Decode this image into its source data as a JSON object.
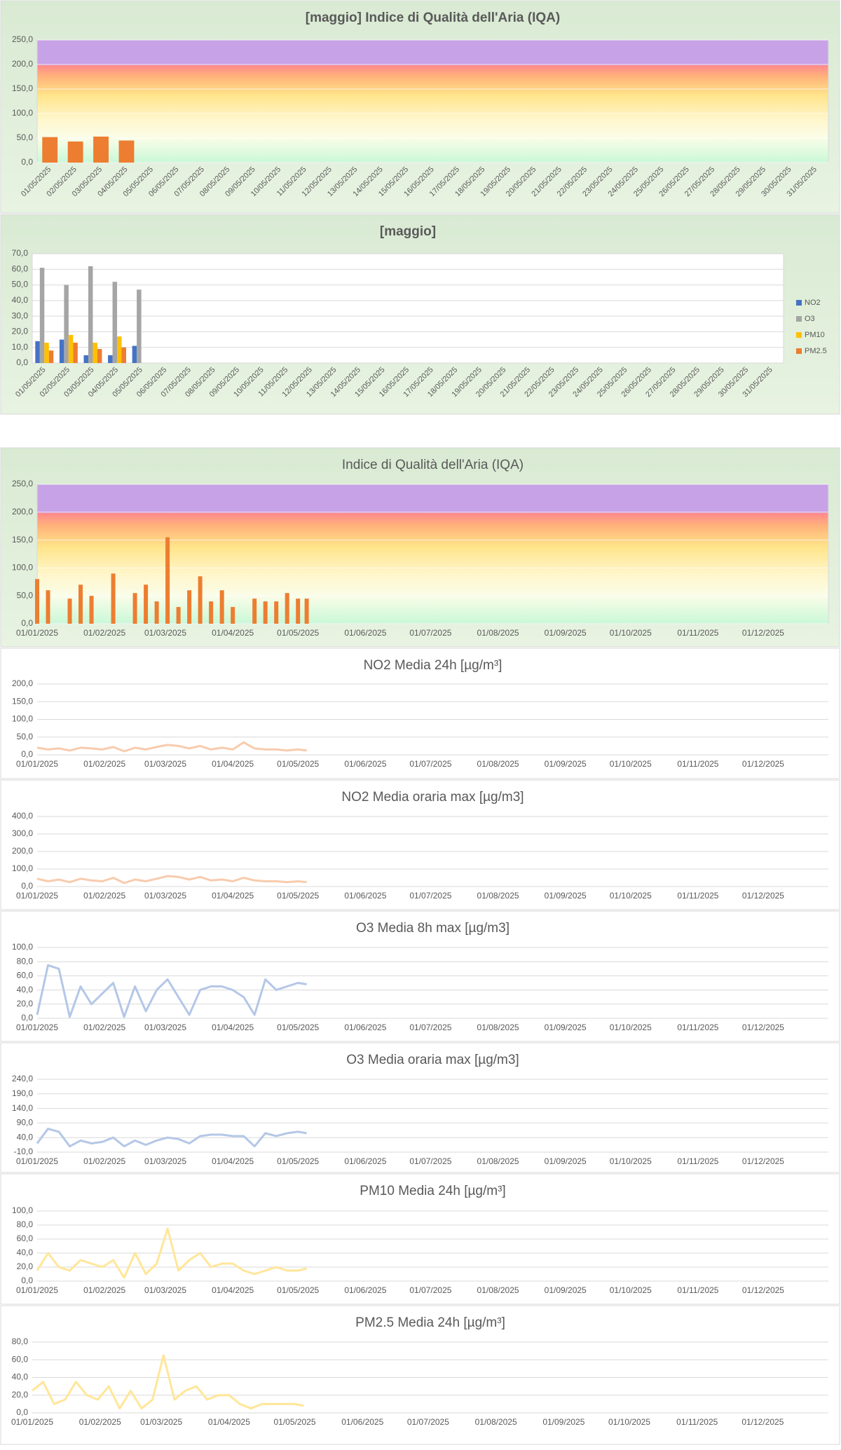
{
  "chart_data": [
    {
      "type": "bar",
      "title": "[maggio] Indice di Qualità dell'Aria (IQA)",
      "categories": [
        "01/05/2025",
        "02/05/2025",
        "03/05/2025",
        "04/05/2025",
        "05/05/2025",
        "06/05/2025",
        "07/05/2025",
        "08/05/2025",
        "09/05/2025",
        "10/05/2025",
        "11/05/2025",
        "12/05/2025",
        "13/05/2025",
        "14/05/2025",
        "15/05/2025",
        "16/05/2025",
        "17/05/2025",
        "18/05/2025",
        "19/05/2025",
        "20/05/2025",
        "21/05/2025",
        "22/05/2025",
        "23/05/2025",
        "24/05/2025",
        "25/05/2025",
        "26/05/2025",
        "27/05/2025",
        "28/05/2025",
        "29/05/2025",
        "30/05/2025",
        "31/05/2025"
      ],
      "values": [
        52,
        43,
        53,
        45,
        null,
        null,
        null,
        null,
        null,
        null,
        null,
        null,
        null,
        null,
        null,
        null,
        null,
        null,
        null,
        null,
        null,
        null,
        null,
        null,
        null,
        null,
        null,
        null,
        null,
        null,
        null
      ],
      "color": "#ed7d31",
      "ylim": [
        0,
        250
      ],
      "yticks": [
        {
          "value": 0,
          "label": "0,0"
        },
        {
          "value": 50,
          "label": "50,0"
        },
        {
          "value": 100,
          "label": "100,0"
        },
        {
          "value": 150,
          "label": "150,0"
        },
        {
          "value": 200,
          "label": "200,0"
        },
        {
          "value": 250,
          "label": "250,0"
        }
      ],
      "grid": true
    },
    {
      "type": "bar",
      "title": "[maggio]",
      "categories": [
        "01/05/2025",
        "02/05/2025",
        "03/05/2025",
        "04/05/2025",
        "05/05/2025",
        "06/05/2025",
        "07/05/2025",
        "08/05/2025",
        "09/05/2025",
        "10/05/2025",
        "11/05/2025",
        "12/05/2025",
        "13/05/2025",
        "14/05/2025",
        "15/05/2025",
        "16/05/2025",
        "17/05/2025",
        "18/05/2025",
        "19/05/2025",
        "20/05/2025",
        "21/05/2025",
        "22/05/2025",
        "23/05/2025",
        "24/05/2025",
        "25/05/2025",
        "26/05/2025",
        "27/05/2025",
        "28/05/2025",
        "29/05/2025",
        "30/05/2025",
        "31/05/2025"
      ],
      "series": [
        {
          "name": "NO2",
          "color": "#4472c4",
          "values": [
            14,
            15,
            5,
            5,
            11,
            null,
            null,
            null,
            null,
            null,
            null,
            null,
            null,
            null,
            null,
            null,
            null,
            null,
            null,
            null,
            null,
            null,
            null,
            null,
            null,
            null,
            null,
            null,
            null,
            null,
            null
          ]
        },
        {
          "name": "O3",
          "color": "#a5a5a5",
          "values": [
            61,
            50,
            62,
            52,
            47,
            null,
            null,
            null,
            null,
            null,
            null,
            null,
            null,
            null,
            null,
            null,
            null,
            null,
            null,
            null,
            null,
            null,
            null,
            null,
            null,
            null,
            null,
            null,
            null,
            null,
            null
          ]
        },
        {
          "name": "PM10",
          "color": "#ffc000",
          "values": [
            13,
            18,
            13,
            17,
            null,
            null,
            null,
            null,
            null,
            null,
            null,
            null,
            null,
            null,
            null,
            null,
            null,
            null,
            null,
            null,
            null,
            null,
            null,
            null,
            null,
            null,
            null,
            null,
            null,
            null,
            null
          ]
        },
        {
          "name": "PM2.5",
          "color": "#ed7d31",
          "values": [
            8,
            13,
            9,
            10,
            null,
            null,
            null,
            null,
            null,
            null,
            null,
            null,
            null,
            null,
            null,
            null,
            null,
            null,
            null,
            null,
            null,
            null,
            null,
            null,
            null,
            null,
            null,
            null,
            null,
            null,
            null
          ]
        }
      ],
      "ylim": [
        0,
        70
      ],
      "yticks": [
        {
          "value": 0,
          "label": "0,0"
        },
        {
          "value": 10,
          "label": "10,0"
        },
        {
          "value": 20,
          "label": "20,0"
        },
        {
          "value": 30,
          "label": "30,0"
        },
        {
          "value": 40,
          "label": "40,0"
        },
        {
          "value": 50,
          "label": "50,0"
        },
        {
          "value": 60,
          "label": "60,0"
        },
        {
          "value": 70,
          "label": "70,0"
        }
      ],
      "grid": true,
      "legend": "right"
    },
    {
      "type": "bar",
      "title": "Indice di Qualità dell'Aria (IQA)",
      "x": [
        "01/01/2025",
        "06/01/2025",
        "11/01/2025",
        "16/01/2025",
        "21/01/2025",
        "26/01/2025",
        "31/01/2025",
        "05/02/2025",
        "10/02/2025",
        "15/02/2025",
        "20/02/2025",
        "25/02/2025",
        "02/03/2025",
        "07/03/2025",
        "12/03/2025",
        "17/03/2025",
        "22/03/2025",
        "27/03/2025",
        "01/04/2025",
        "06/04/2025",
        "11/04/2025",
        "16/04/2025",
        "21/04/2025",
        "26/04/2025",
        "01/05/2025",
        "05/05/2025"
      ],
      "values": [
        80,
        60,
        null,
        45,
        70,
        50,
        null,
        90,
        null,
        55,
        70,
        40,
        155,
        30,
        60,
        85,
        40,
        60,
        30,
        null,
        45,
        40,
        40,
        55,
        45,
        45
      ],
      "color": "#ed7d31",
      "xlim": [
        "01/01/2025",
        "31/12/2025"
      ],
      "xticks": [
        "01/01/2025",
        "01/02/2025",
        "01/03/2025",
        "01/04/2025",
        "01/05/2025",
        "01/06/2025",
        "01/07/2025",
        "01/08/2025",
        "01/09/2025",
        "01/10/2025",
        "01/11/2025",
        "01/12/2025"
      ],
      "ylim": [
        0,
        250
      ],
      "yticks": [
        {
          "value": 0,
          "label": "0,0"
        },
        {
          "value": 50,
          "label": "50,0"
        },
        {
          "value": 100,
          "label": "100,0"
        },
        {
          "value": 150,
          "label": "150,0"
        },
        {
          "value": 200,
          "label": "200,0"
        },
        {
          "value": 250,
          "label": "250,0"
        }
      ],
      "grid": true
    },
    {
      "type": "line",
      "title": "NO2 Media 24h [µg/m³]",
      "x": [
        "01/01/2025",
        "06/01/2025",
        "11/01/2025",
        "16/01/2025",
        "21/01/2025",
        "26/01/2025",
        "31/01/2025",
        "05/02/2025",
        "10/02/2025",
        "15/02/2025",
        "20/02/2025",
        "25/02/2025",
        "02/03/2025",
        "07/03/2025",
        "12/03/2025",
        "17/03/2025",
        "22/03/2025",
        "27/03/2025",
        "01/04/2025",
        "06/04/2025",
        "11/04/2025",
        "16/04/2025",
        "21/04/2025",
        "26/04/2025",
        "01/05/2025",
        "05/05/2025"
      ],
      "values": [
        20,
        15,
        18,
        12,
        20,
        18,
        15,
        22,
        10,
        20,
        15,
        22,
        28,
        25,
        18,
        25,
        15,
        20,
        15,
        35,
        18,
        15,
        15,
        12,
        15,
        12
      ],
      "color": "#f8cbad",
      "xlim": [
        "01/01/2025",
        "31/12/2025"
      ],
      "xticks": [
        "01/01/2025",
        "01/02/2025",
        "01/03/2025",
        "01/04/2025",
        "01/05/2025",
        "01/06/2025",
        "01/07/2025",
        "01/08/2025",
        "01/09/2025",
        "01/10/2025",
        "01/11/2025",
        "01/12/2025"
      ],
      "ylim": [
        0,
        200
      ],
      "yticks": [
        {
          "value": 0,
          "label": "0,0"
        },
        {
          "value": 50,
          "label": "50,0"
        },
        {
          "value": 100,
          "label": "100,0"
        },
        {
          "value": 150,
          "label": "150,0"
        },
        {
          "value": 200,
          "label": "200,0"
        }
      ],
      "grid": true
    },
    {
      "type": "line",
      "title": "NO2 Media oraria max [µg/m3]",
      "x": [
        "01/01/2025",
        "06/01/2025",
        "11/01/2025",
        "16/01/2025",
        "21/01/2025",
        "26/01/2025",
        "31/01/2025",
        "05/02/2025",
        "10/02/2025",
        "15/02/2025",
        "20/02/2025",
        "25/02/2025",
        "02/03/2025",
        "07/03/2025",
        "12/03/2025",
        "17/03/2025",
        "22/03/2025",
        "27/03/2025",
        "01/04/2025",
        "06/04/2025",
        "11/04/2025",
        "16/04/2025",
        "21/04/2025",
        "26/04/2025",
        "01/05/2025",
        "05/05/2025"
      ],
      "values": [
        45,
        30,
        40,
        25,
        45,
        35,
        30,
        50,
        20,
        40,
        30,
        45,
        60,
        55,
        40,
        55,
        35,
        40,
        30,
        50,
        35,
        30,
        30,
        25,
        30,
        25
      ],
      "color": "#f8cbad",
      "xlim": [
        "01/01/2025",
        "31/12/2025"
      ],
      "xticks": [
        "01/01/2025",
        "01/02/2025",
        "01/03/2025",
        "01/04/2025",
        "01/05/2025",
        "01/06/2025",
        "01/07/2025",
        "01/08/2025",
        "01/09/2025",
        "01/10/2025",
        "01/11/2025",
        "01/12/2025"
      ],
      "ylim": [
        0,
        400
      ],
      "yticks": [
        {
          "value": 0,
          "label": "0,0"
        },
        {
          "value": 100,
          "label": "100,0"
        },
        {
          "value": 200,
          "label": "200,0"
        },
        {
          "value": 300,
          "label": "300,0"
        },
        {
          "value": 400,
          "label": "400,0"
        }
      ],
      "grid": true
    },
    {
      "type": "line",
      "title": "O3 Media 8h max [µg/m3]",
      "x": [
        "01/01/2025",
        "06/01/2025",
        "11/01/2025",
        "16/01/2025",
        "21/01/2025",
        "26/01/2025",
        "31/01/2025",
        "05/02/2025",
        "10/02/2025",
        "15/02/2025",
        "20/02/2025",
        "25/02/2025",
        "02/03/2025",
        "07/03/2025",
        "12/03/2025",
        "17/03/2025",
        "22/03/2025",
        "27/03/2025",
        "01/04/2025",
        "06/04/2025",
        "11/04/2025",
        "16/04/2025",
        "21/04/2025",
        "26/04/2025",
        "01/05/2025",
        "05/05/2025"
      ],
      "values": [
        5,
        75,
        70,
        2,
        45,
        20,
        35,
        50,
        2,
        45,
        10,
        40,
        55,
        30,
        5,
        40,
        45,
        45,
        40,
        30,
        5,
        55,
        40,
        45,
        50,
        48
      ],
      "color": "#b4c7e7",
      "xlim": [
        "01/01/2025",
        "31/12/2025"
      ],
      "xticks": [
        "01/01/2025",
        "01/02/2025",
        "01/03/2025",
        "01/04/2025",
        "01/05/2025",
        "01/06/2025",
        "01/07/2025",
        "01/08/2025",
        "01/09/2025",
        "01/10/2025",
        "01/11/2025",
        "01/12/2025"
      ],
      "ylim": [
        0,
        100
      ],
      "yticks": [
        {
          "value": 0,
          "label": "0,0"
        },
        {
          "value": 20,
          "label": "20,0"
        },
        {
          "value": 40,
          "label": "40,0"
        },
        {
          "value": 60,
          "label": "60,0"
        },
        {
          "value": 80,
          "label": "80,0"
        },
        {
          "value": 100,
          "label": "100,0"
        }
      ],
      "grid": true
    },
    {
      "type": "line",
      "title": "O3 Media oraria max [µg/m3]",
      "x": [
        "01/01/2025",
        "06/01/2025",
        "11/01/2025",
        "16/01/2025",
        "21/01/2025",
        "26/01/2025",
        "31/01/2025",
        "05/02/2025",
        "10/02/2025",
        "15/02/2025",
        "20/02/2025",
        "25/02/2025",
        "02/03/2025",
        "07/03/2025",
        "12/03/2025",
        "17/03/2025",
        "22/03/2025",
        "27/03/2025",
        "01/04/2025",
        "06/04/2025",
        "11/04/2025",
        "16/04/2025",
        "21/04/2025",
        "26/04/2025",
        "01/05/2025",
        "05/05/2025"
      ],
      "values": [
        20,
        70,
        60,
        10,
        30,
        20,
        25,
        40,
        10,
        30,
        15,
        30,
        40,
        35,
        20,
        45,
        50,
        50,
        45,
        45,
        10,
        55,
        45,
        55,
        60,
        55
      ],
      "color": "#b4c7e7",
      "xlim": [
        "01/01/2025",
        "31/12/2025"
      ],
      "xticks": [
        "01/01/2025",
        "01/02/2025",
        "01/03/2025",
        "01/04/2025",
        "01/05/2025",
        "01/06/2025",
        "01/07/2025",
        "01/08/2025",
        "01/09/2025",
        "01/10/2025",
        "01/11/2025",
        "01/12/2025"
      ],
      "ylim": [
        -10,
        240
      ],
      "yticks": [
        {
          "value": -10,
          "label": "-10,0"
        },
        {
          "value": 40,
          "label": "40,0"
        },
        {
          "value": 90,
          "label": "90,0"
        },
        {
          "value": 140,
          "label": "140,0"
        },
        {
          "value": 190,
          "label": "190,0"
        },
        {
          "value": 240,
          "label": "240,0"
        }
      ],
      "grid": true
    },
    {
      "type": "line",
      "title": "PM10 Media 24h [µg/m³]",
      "x": [
        "01/01/2025",
        "06/01/2025",
        "11/01/2025",
        "16/01/2025",
        "21/01/2025",
        "26/01/2025",
        "31/01/2025",
        "05/02/2025",
        "10/02/2025",
        "15/02/2025",
        "20/02/2025",
        "25/02/2025",
        "02/03/2025",
        "07/03/2025",
        "12/03/2025",
        "17/03/2025",
        "22/03/2025",
        "27/03/2025",
        "01/04/2025",
        "06/04/2025",
        "11/04/2025",
        "16/04/2025",
        "21/04/2025",
        "26/04/2025",
        "01/05/2025",
        "05/05/2025"
      ],
      "values": [
        15,
        40,
        20,
        15,
        30,
        25,
        20,
        30,
        5,
        40,
        10,
        25,
        75,
        15,
        30,
        40,
        20,
        25,
        25,
        15,
        10,
        15,
        20,
        15,
        15,
        18
      ],
      "color": "#ffe699",
      "xlim": [
        "01/01/2025",
        "31/12/2025"
      ],
      "xticks": [
        "01/01/2025",
        "01/02/2025",
        "01/03/2025",
        "01/04/2025",
        "01/05/2025",
        "01/06/2025",
        "01/07/2025",
        "01/08/2025",
        "01/09/2025",
        "01/10/2025",
        "01/11/2025",
        "01/12/2025"
      ],
      "ylim": [
        0,
        100
      ],
      "yticks": [
        {
          "value": 0,
          "label": "0,0"
        },
        {
          "value": 20,
          "label": "20,0"
        },
        {
          "value": 40,
          "label": "40,0"
        },
        {
          "value": 60,
          "label": "60,0"
        },
        {
          "value": 80,
          "label": "80,0"
        },
        {
          "value": 100,
          "label": "100,0"
        }
      ],
      "grid": true
    },
    {
      "type": "line",
      "title": "PM2.5 Media 24h [µg/m³]",
      "x": [
        "01/01/2025",
        "06/01/2025",
        "11/01/2025",
        "16/01/2025",
        "21/01/2025",
        "26/01/2025",
        "31/01/2025",
        "05/02/2025",
        "10/02/2025",
        "15/02/2025",
        "20/02/2025",
        "25/02/2025",
        "02/03/2025",
        "07/03/2025",
        "12/03/2025",
        "17/03/2025",
        "22/03/2025",
        "27/03/2025",
        "01/04/2025",
        "06/04/2025",
        "11/04/2025",
        "16/04/2025",
        "21/04/2025",
        "26/04/2025",
        "01/05/2025",
        "05/05/2025"
      ],
      "values": [
        25,
        35,
        10,
        15,
        35,
        20,
        15,
        30,
        5,
        25,
        5,
        15,
        65,
        15,
        25,
        30,
        15,
        20,
        20,
        10,
        5,
        10,
        10,
        10,
        10,
        8
      ],
      "color": "#ffe699",
      "xlim": [
        "01/01/2025",
        "31/12/2025"
      ],
      "xticks": [
        "01/01/2025",
        "01/02/2025",
        "01/03/2025",
        "01/04/2025",
        "01/05/2025",
        "01/06/2025",
        "01/07/2025",
        "01/08/2025",
        "01/09/2025",
        "01/10/2025",
        "01/11/2025",
        "01/12/2025"
      ],
      "ylim": [
        0,
        80
      ],
      "yticks": [
        {
          "value": 0,
          "label": "0,0"
        },
        {
          "value": 20,
          "label": "20,0"
        },
        {
          "value": 40,
          "label": "40,0"
        },
        {
          "value": 60,
          "label": "60,0"
        },
        {
          "value": 80,
          "label": "80,0"
        }
      ],
      "grid": true
    }
  ]
}
